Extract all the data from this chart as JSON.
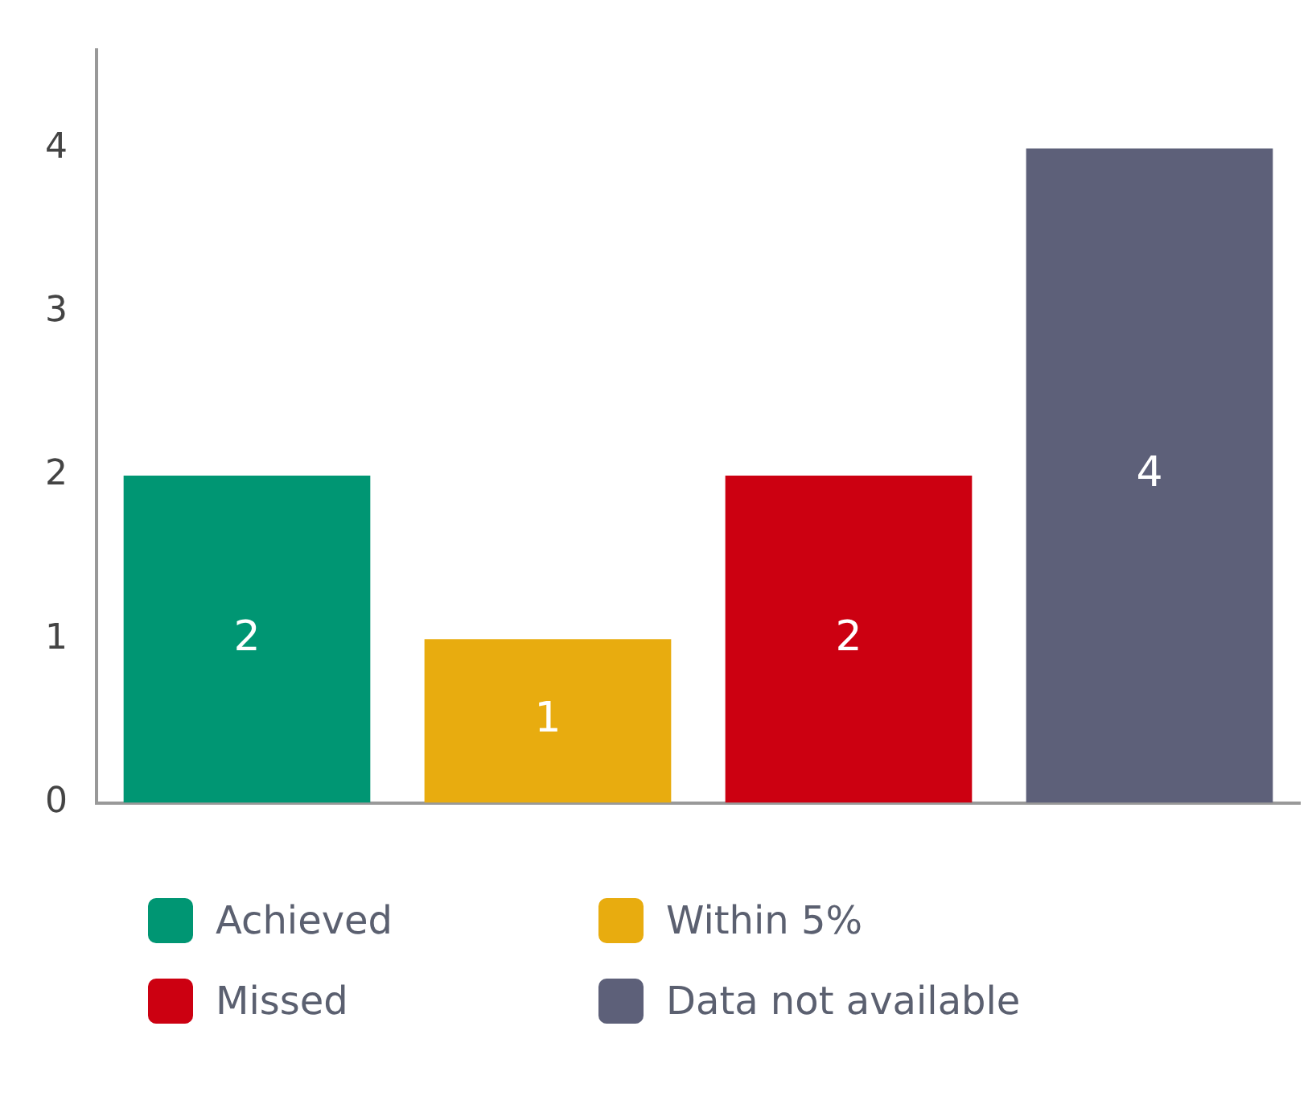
{
  "chart_data": {
    "type": "bar",
    "categories": [
      null,
      null,
      null,
      null
    ],
    "series": [
      {
        "name": "Achieved",
        "color": "#009673",
        "values": [
          2,
          null,
          null,
          null
        ]
      },
      {
        "name": "Within 5%",
        "color": "#e8ac0f",
        "values": [
          null,
          1,
          null,
          null
        ]
      },
      {
        "name": "Missed",
        "color": "#cc0011",
        "values": [
          null,
          null,
          2,
          null
        ]
      },
      {
        "name": "Data not available",
        "color": "#5d6079",
        "values": [
          null,
          null,
          null,
          4
        ]
      }
    ],
    "ylim": [
      0,
      4.6
    ],
    "yticks": [
      0,
      1,
      2,
      3,
      4
    ],
    "grid": false,
    "legend": "bottom",
    "data_labels": true
  }
}
